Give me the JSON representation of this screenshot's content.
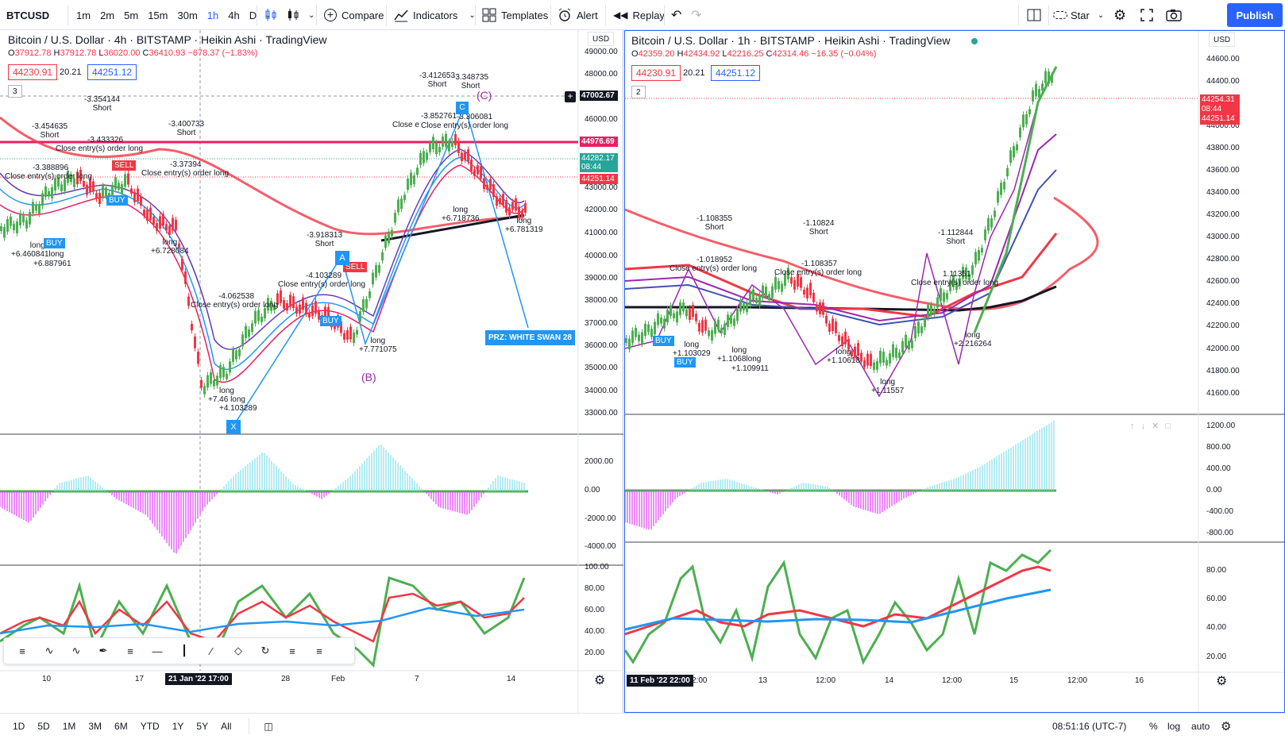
{
  "header": {
    "symbol": "BTCUSD",
    "intervals": [
      "1m",
      "2m",
      "5m",
      "15m",
      "30m",
      "1h",
      "4h",
      "D"
    ],
    "active_interval": "1h",
    "compare_label": "Compare",
    "indicators_label": "Indicators",
    "templates_label": "Templates",
    "alert_label": "Alert",
    "replay_label": "Replay",
    "star_label": "Star",
    "publish_label": "Publish"
  },
  "left_chart": {
    "title": "Bitcoin / U.S. Dollar · 4h · BITSTAMP · Heikin Ashi · TradingView",
    "ohlc": {
      "o": "37912.78",
      "h": "37912.78",
      "l": "36020.00",
      "c": "36410.93",
      "chg": "−678.37 (−1.83%)"
    },
    "bid": "44230.91",
    "spread": "20.21",
    "ask": "44251.12",
    "pane_count": "3",
    "currency": "USD",
    "price_ticks": [
      "49000.00",
      "48000.00",
      "46000.00",
      "45000.00",
      "43000.00",
      "42000.00",
      "41000.00",
      "40000.00",
      "39000.00",
      "38000.00",
      "37000.00",
      "36000.00",
      "35000.00",
      "34000.00",
      "33000.00"
    ],
    "price_labels": {
      "crosshair": "47002.67",
      "line": "44976.69",
      "last": "44282.17",
      "countdown": "08:44",
      "ask": "44251.14"
    },
    "osc_ticks": [
      "2000.00",
      "0.00",
      "-2000.00",
      "-4000.00"
    ],
    "rsi_ticks": [
      "100.00",
      "80.00",
      "60.00",
      "40.00",
      "20.00"
    ],
    "time_ticks": [
      "10",
      "17",
      "28",
      "Feb",
      "7",
      "14"
    ],
    "time_cursor": "21 Jan '22  17:00",
    "annotations": {
      "prz": "PRZ: WHITE SWAN 28",
      "point_x": "X",
      "point_a": "A",
      "point_b": "(B)",
      "point_c": "(C)",
      "point_c_box": "C",
      "signals": [
        {
          "text": "-3.354144",
          "sub": "Short"
        },
        {
          "text": "-3.454635",
          "sub": "Short"
        },
        {
          "text": "-3.433326",
          "sub": "Close entry(s) order long"
        },
        {
          "text": "-3.400733",
          "sub": "Short"
        },
        {
          "text": "-3.388896",
          "sub": "Close entry(s) order long"
        },
        {
          "text": "-3.37394",
          "sub": "Close entry(s) order long"
        },
        {
          "text": "-3.412653",
          "sub": "Short"
        },
        {
          "text": "-3.348735",
          "sub": "Short"
        },
        {
          "text": "-3.852761",
          "sub": "Close e"
        },
        {
          "text": "-3.306081",
          "sub": "Close entry(s) order long"
        },
        {
          "text": "-3.918313",
          "sub": "Short"
        },
        {
          "text": "-4.103289",
          "sub": "Close entry(s) order long"
        },
        {
          "text": "-4.062538",
          "sub": "Close entry(s) order long"
        }
      ],
      "longs": [
        {
          "text": "long",
          "val": "+6.460841long"
        },
        {
          "text": "",
          "val": "+6.887961"
        },
        {
          "text": "long",
          "val": "+6.728084"
        },
        {
          "text": "long",
          "val": "+6.718736"
        },
        {
          "text": "long",
          "val": "+6.781319"
        },
        {
          "text": "long",
          "val": "+7.771075"
        },
        {
          "text": "long",
          "val": "+7.46 long"
        },
        {
          "text": "",
          "val": "+4.103289"
        }
      ],
      "buy": "BUY",
      "sell": "SELL"
    }
  },
  "right_chart": {
    "title": "Bitcoin / U.S. Dollar · 1h · BITSTAMP · Heikin Ashi · TradingView",
    "ohlc": {
      "o": "42359.20",
      "h": "42434.92",
      "l": "42216.25",
      "c": "42314.46",
      "chg": "−16.35 (−0.04%)"
    },
    "bid": "44230.91",
    "spread": "20.21",
    "ask": "44251.12",
    "pane_count": "2",
    "currency": "USD",
    "price_ticks": [
      "44600.00",
      "44400.00",
      "44000.00",
      "43800.00",
      "43600.00",
      "43400.00",
      "43200.00",
      "43000.00",
      "42800.00",
      "42600.00",
      "42400.00",
      "42200.00",
      "42000.00",
      "41800.00",
      "41600.00"
    ],
    "price_labels": {
      "last": "44254.31",
      "countdown": "08:44",
      "ask": "44251.14"
    },
    "osc_ticks": [
      "1200.00",
      "800.00",
      "400.00",
      "0.00",
      "-400.00",
      "-800.00"
    ],
    "rsi_ticks": [
      "80.00",
      "60.00",
      "40.00",
      "20.00"
    ],
    "time_ticks": [
      "2:00",
      "13",
      "12:00",
      "14",
      "12:00",
      "15",
      "12:00",
      "16"
    ],
    "time_cursor": "11 Feb '22  22:00",
    "annotations": {
      "signals": [
        {
          "text": "-1.108355",
          "sub": "Short"
        },
        {
          "text": "-1.10824",
          "sub": "Short"
        },
        {
          "text": "-1.112844",
          "sub": "Short"
        },
        {
          "text": "-1.018952",
          "sub": "Close entry(s) order long"
        },
        {
          "text": "-1.108357",
          "sub": "Close entry(s) order long"
        },
        {
          "text": "1.11351",
          "sub": "Close entry(s) order long"
        }
      ],
      "longs": [
        {
          "text": "long",
          "val": "+1.103029"
        },
        {
          "text": "long",
          "val": "+1.1068long"
        },
        {
          "text": "",
          "val": "+1.109911"
        },
        {
          "text": "long",
          "val": "+1.10618"
        },
        {
          "text": "long",
          "val": "+1.11557"
        },
        {
          "text": "long",
          "val": "+2.216264"
        }
      ],
      "buy": "BUY"
    }
  },
  "bottom": {
    "ranges": [
      "1D",
      "5D",
      "1M",
      "3M",
      "6M",
      "YTD",
      "1Y",
      "5Y",
      "All"
    ],
    "time": "08:51:16 (UTC-7)",
    "pct": "%",
    "log": "log",
    "auto": "auto"
  },
  "colors": {
    "accent": "#2962ff",
    "up": "#26a69a",
    "down": "#f23645",
    "resistance": "#e91e63"
  }
}
